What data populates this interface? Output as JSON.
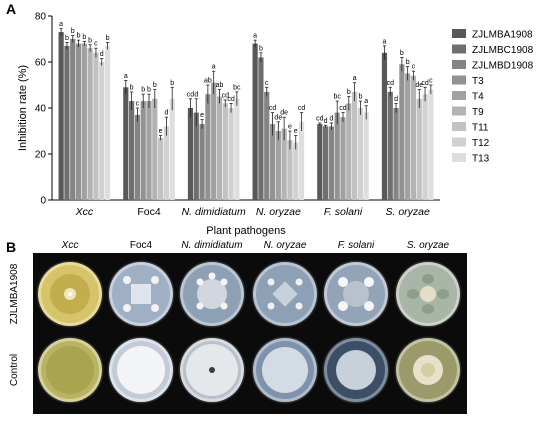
{
  "panel_a_label": "A",
  "panel_b_label": "B",
  "chart_data": {
    "type": "bar",
    "xlabel": "Plant pathogens",
    "ylabel": "Inhibition rate (%)",
    "ylim": [
      0,
      80
    ],
    "yticks": [
      "0",
      "20",
      "40",
      "60",
      "80"
    ],
    "grid": false,
    "legend_position": "right",
    "categories": [
      "Xcc",
      "Foc4",
      "N. dimidiatum",
      "N. oryzae",
      "F. solani",
      "S. oryzae"
    ],
    "category_italic": [
      true,
      false,
      true,
      true,
      true,
      true
    ],
    "series": [
      {
        "name": "ZJLMBA1908",
        "color": "#595959",
        "values": [
          73,
          49,
          40,
          68,
          33,
          64
        ],
        "errors": [
          1.5,
          3,
          4,
          1.5,
          0.5,
          3
        ],
        "letters": [
          "a",
          "a",
          "cd",
          "a",
          "cd",
          "a"
        ]
      },
      {
        "name": "ZJLMBC1908",
        "color": "#6f6f6f",
        "values": [
          67,
          43,
          38,
          62,
          32,
          47
        ],
        "errors": [
          1.5,
          4,
          6,
          2,
          0.5,
          2
        ],
        "letters": [
          "b",
          "b",
          "d",
          "b",
          "d",
          "cd"
        ]
      },
      {
        "name": "ZJLMBD1908",
        "color": "#848484",
        "values": [
          70,
          37,
          33,
          47,
          32,
          40
        ],
        "errors": [
          1.5,
          3,
          2,
          2,
          1.5,
          2
        ],
        "letters": [
          "b",
          "c",
          "e",
          "c",
          "d",
          "d"
        ]
      },
      {
        "name": "T3",
        "color": "#929292",
        "values": [
          68,
          43,
          46,
          33,
          38,
          59
        ],
        "errors": [
          1.5,
          3,
          4,
          5,
          5,
          3
        ],
        "letters": [
          "b",
          "b",
          "ab",
          "cd",
          "bc",
          "b"
        ]
      },
      {
        "name": "T4",
        "color": "#a1a1a1",
        "values": [
          68,
          43,
          51,
          30,
          36,
          55
        ],
        "errors": [
          1,
          3,
          5,
          4,
          2,
          3
        ],
        "letters": [
          "b",
          "b",
          "a",
          "de",
          "cd",
          "b"
        ]
      },
      {
        "name": "T9",
        "color": "#b3b3b3",
        "values": [
          66,
          44,
          45,
          31,
          42,
          54
        ],
        "errors": [
          1.5,
          4,
          3,
          5,
          3,
          2
        ],
        "letters": [
          "b",
          "b",
          "ab",
          "de",
          "b",
          "c"
        ]
      },
      {
        "name": "T11",
        "color": "#c2c2c2",
        "values": [
          64,
          27,
          42,
          26,
          47,
          44
        ],
        "errors": [
          2,
          1,
          1.5,
          4,
          4,
          4
        ],
        "letters": [
          "c",
          "e",
          "cd",
          "e",
          "a",
          "de"
        ]
      },
      {
        "name": "T12",
        "color": "#d1d1d1",
        "values": [
          60,
          32,
          40,
          25,
          40,
          46
        ],
        "errors": [
          1.5,
          4,
          2,
          3,
          3,
          3
        ],
        "letters": [
          "d",
          "d",
          "cd",
          "e",
          "b",
          "cd"
        ]
      },
      {
        "name": "T13",
        "color": "#dedede",
        "values": [
          67,
          44,
          44,
          34,
          38,
          48
        ],
        "errors": [
          1.5,
          5,
          3,
          4,
          3,
          2
        ],
        "letters": [
          "b",
          "b",
          "bc",
          "cd",
          "a",
          "c"
        ]
      }
    ]
  },
  "photo_panel": {
    "columns": [
      "Xcc",
      "Foc4",
      "N. dimidiatum",
      "N. oryzae",
      "F. solani",
      "S. oryzae"
    ],
    "column_italic": [
      true,
      false,
      true,
      true,
      true,
      true
    ],
    "rows": [
      "ZJLMBA1908",
      "Control"
    ]
  }
}
